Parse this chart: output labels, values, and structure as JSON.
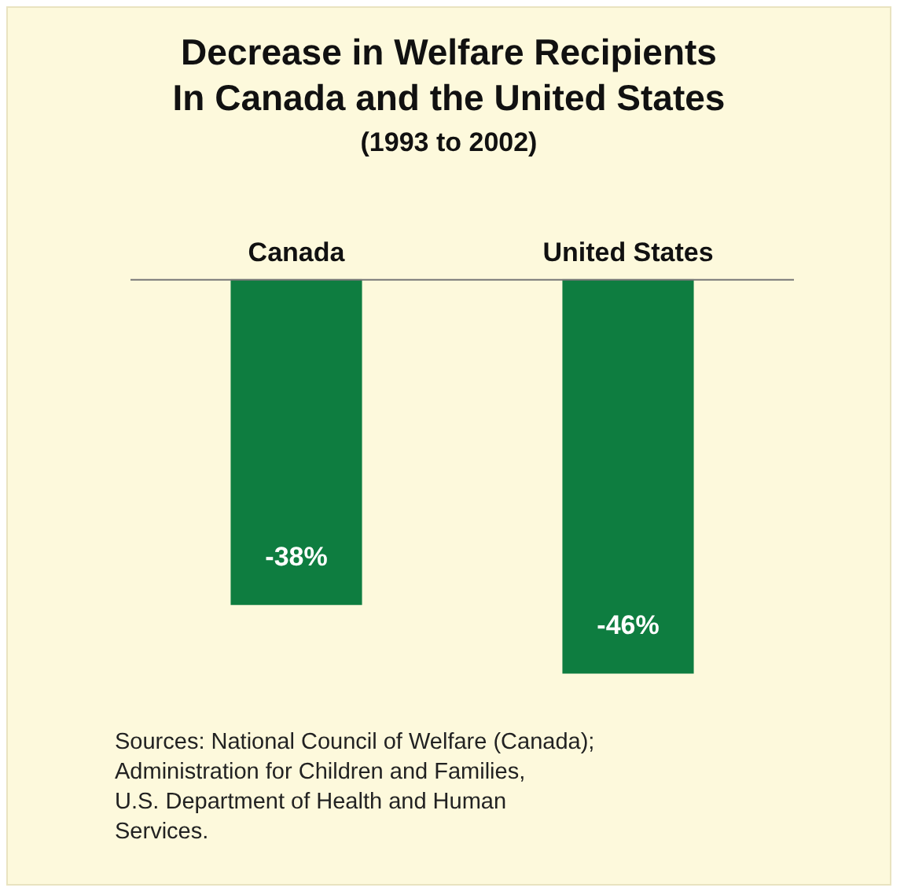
{
  "chart_data": {
    "type": "bar",
    "title": "Decrease in Welfare Recipients\nIn Canada and the United States",
    "subtitle": "(1993 to 2002)",
    "categories": [
      "Canada",
      "United States"
    ],
    "values": [
      -38,
      -46
    ],
    "color": "#0e7d40",
    "value_labels": [
      "-38%",
      "-46%"
    ],
    "grid": false,
    "legend": false,
    "annotations": [
      "Sources: National Council of Welfare (Canada);\nAdministration for Children and Families,\nU.S. Department of Health and Human\nServices."
    ]
  }
}
